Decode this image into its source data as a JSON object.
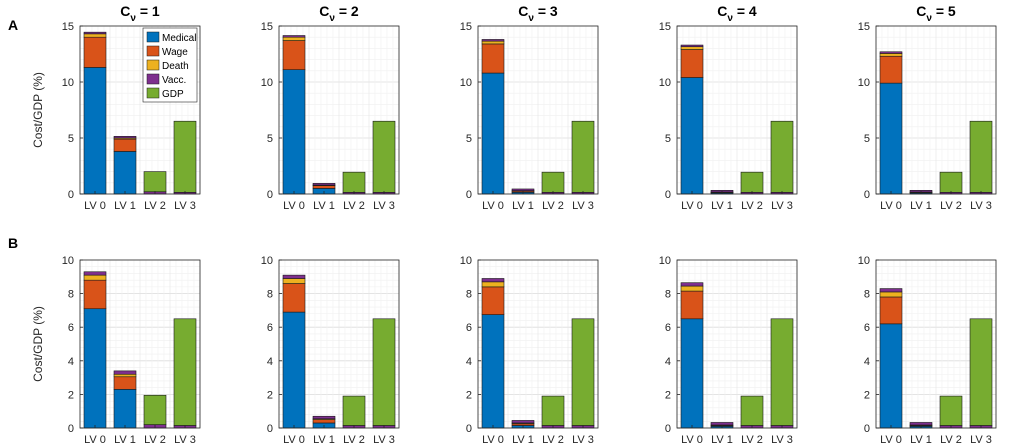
{
  "figure": {
    "panel_labels": [
      "A",
      "B"
    ],
    "colors": {
      "Medical": "#0072BD",
      "Wage": "#D95319",
      "Death": "#EDB120",
      "Vacc.": "#7E2F8E",
      "GDP": "#77AC30"
    }
  },
  "chart_data": [
    {
      "type": "bar",
      "stacked": true,
      "row": "A",
      "title_base": "C",
      "title_sub": "ν",
      "title_value": "= 1",
      "ylabel": "Cost/GDP (%)",
      "ylim": [
        0,
        15
      ],
      "yticks": [
        0,
        5,
        10,
        15
      ],
      "grid": true,
      "legend": "top-right",
      "categories": [
        "LV 0",
        "LV 1",
        "LV 2",
        "LV 3"
      ],
      "series": [
        {
          "name": "Medical",
          "values": [
            11.3,
            3.8,
            0.0,
            0.0
          ]
        },
        {
          "name": "Wage",
          "values": [
            2.7,
            1.1,
            0.0,
            0.0
          ]
        },
        {
          "name": "Death",
          "values": [
            0.3,
            0.1,
            0.0,
            0.0
          ]
        },
        {
          "name": "Vacc.",
          "values": [
            0.15,
            0.15,
            0.2,
            0.15
          ]
        },
        {
          "name": "GDP",
          "values": [
            0.0,
            0.0,
            1.8,
            6.35
          ]
        }
      ]
    },
    {
      "type": "bar",
      "stacked": true,
      "row": "A",
      "title_base": "C",
      "title_sub": "ν",
      "title_value": "= 2",
      "ylabel": "",
      "ylim": [
        0,
        15
      ],
      "yticks": [
        0,
        5,
        10,
        15
      ],
      "grid": true,
      "categories": [
        "LV 0",
        "LV 1",
        "LV 2",
        "LV 3"
      ],
      "series": [
        {
          "name": "Medical",
          "values": [
            11.1,
            0.5,
            0.0,
            0.0
          ]
        },
        {
          "name": "Wage",
          "values": [
            2.6,
            0.25,
            0.0,
            0.0
          ]
        },
        {
          "name": "Death",
          "values": [
            0.3,
            0.05,
            0.0,
            0.0
          ]
        },
        {
          "name": "Vacc.",
          "values": [
            0.15,
            0.15,
            0.15,
            0.15
          ]
        },
        {
          "name": "GDP",
          "values": [
            0.0,
            0.0,
            1.8,
            6.35
          ]
        }
      ]
    },
    {
      "type": "bar",
      "stacked": true,
      "row": "A",
      "title_base": "C",
      "title_sub": "ν",
      "title_value": "= 3",
      "ylabel": "",
      "ylim": [
        0,
        15
      ],
      "yticks": [
        0,
        5,
        10,
        15
      ],
      "grid": true,
      "categories": [
        "LV 0",
        "LV 1",
        "LV 2",
        "LV 3"
      ],
      "series": [
        {
          "name": "Medical",
          "values": [
            10.8,
            0.15,
            0.0,
            0.0
          ]
        },
        {
          "name": "Wage",
          "values": [
            2.6,
            0.1,
            0.0,
            0.0
          ]
        },
        {
          "name": "Death",
          "values": [
            0.25,
            0.05,
            0.0,
            0.0
          ]
        },
        {
          "name": "Vacc.",
          "values": [
            0.15,
            0.15,
            0.15,
            0.15
          ]
        },
        {
          "name": "GDP",
          "values": [
            0.0,
            0.0,
            1.8,
            6.35
          ]
        }
      ]
    },
    {
      "type": "bar",
      "stacked": true,
      "row": "A",
      "title_base": "C",
      "title_sub": "ν",
      "title_value": "= 4",
      "ylabel": "",
      "ylim": [
        0,
        15
      ],
      "yticks": [
        0,
        5,
        10,
        15
      ],
      "grid": true,
      "categories": [
        "LV 0",
        "LV 1",
        "LV 2",
        "LV 3"
      ],
      "series": [
        {
          "name": "Medical",
          "values": [
            10.4,
            0.1,
            0.0,
            0.0
          ]
        },
        {
          "name": "Wage",
          "values": [
            2.5,
            0.05,
            0.0,
            0.0
          ]
        },
        {
          "name": "Death",
          "values": [
            0.25,
            0.03,
            0.0,
            0.0
          ]
        },
        {
          "name": "Vacc.",
          "values": [
            0.15,
            0.15,
            0.15,
            0.15
          ]
        },
        {
          "name": "GDP",
          "values": [
            0.0,
            0.0,
            1.8,
            6.35
          ]
        }
      ]
    },
    {
      "type": "bar",
      "stacked": true,
      "row": "A",
      "title_base": "C",
      "title_sub": "ν",
      "title_value": "= 5",
      "ylabel": "",
      "ylim": [
        0,
        15
      ],
      "yticks": [
        0,
        5,
        10,
        15
      ],
      "grid": true,
      "categories": [
        "LV 0",
        "LV 1",
        "LV 2",
        "LV 3"
      ],
      "series": [
        {
          "name": "Medical",
          "values": [
            9.9,
            0.1,
            0.0,
            0.0
          ]
        },
        {
          "name": "Wage",
          "values": [
            2.4,
            0.05,
            0.0,
            0.0
          ]
        },
        {
          "name": "Death",
          "values": [
            0.25,
            0.03,
            0.0,
            0.0
          ]
        },
        {
          "name": "Vacc.",
          "values": [
            0.15,
            0.15,
            0.15,
            0.15
          ]
        },
        {
          "name": "GDP",
          "values": [
            0.0,
            0.0,
            1.8,
            6.35
          ]
        }
      ]
    },
    {
      "type": "bar",
      "stacked": true,
      "row": "B",
      "ylabel": "Cost/GDP (%)",
      "ylim": [
        0,
        10
      ],
      "yticks": [
        0,
        2,
        4,
        6,
        8,
        10
      ],
      "grid": true,
      "categories": [
        "LV 0",
        "LV 1",
        "LV 2",
        "LV 3"
      ],
      "series": [
        {
          "name": "Medical",
          "values": [
            7.1,
            2.3,
            0.0,
            0.0
          ]
        },
        {
          "name": "Wage",
          "values": [
            1.7,
            0.75,
            0.0,
            0.0
          ]
        },
        {
          "name": "Death",
          "values": [
            0.3,
            0.15,
            0.0,
            0.0
          ]
        },
        {
          "name": "Vacc.",
          "values": [
            0.2,
            0.2,
            0.2,
            0.15
          ]
        },
        {
          "name": "GDP",
          "values": [
            0.0,
            0.0,
            1.75,
            6.35
          ]
        }
      ]
    },
    {
      "type": "bar",
      "stacked": true,
      "row": "B",
      "ylabel": "",
      "ylim": [
        0,
        10
      ],
      "yticks": [
        0,
        2,
        4,
        6,
        8,
        10
      ],
      "grid": true,
      "categories": [
        "LV 0",
        "LV 1",
        "LV 2",
        "LV 3"
      ],
      "series": [
        {
          "name": "Medical",
          "values": [
            6.9,
            0.3,
            0.0,
            0.0
          ]
        },
        {
          "name": "Wage",
          "values": [
            1.7,
            0.2,
            0.0,
            0.0
          ]
        },
        {
          "name": "Death",
          "values": [
            0.3,
            0.05,
            0.0,
            0.0
          ]
        },
        {
          "name": "Vacc.",
          "values": [
            0.2,
            0.15,
            0.15,
            0.15
          ]
        },
        {
          "name": "GDP",
          "values": [
            0.0,
            0.0,
            1.75,
            6.35
          ]
        }
      ]
    },
    {
      "type": "bar",
      "stacked": true,
      "row": "B",
      "ylabel": "",
      "ylim": [
        0,
        10
      ],
      "yticks": [
        0,
        2,
        4,
        6,
        8,
        10
      ],
      "grid": true,
      "categories": [
        "LV 0",
        "LV 1",
        "LV 2",
        "LV 3"
      ],
      "series": [
        {
          "name": "Medical",
          "values": [
            6.75,
            0.15,
            0.0,
            0.0
          ]
        },
        {
          "name": "Wage",
          "values": [
            1.65,
            0.1,
            0.0,
            0.0
          ]
        },
        {
          "name": "Death",
          "values": [
            0.3,
            0.05,
            0.0,
            0.0
          ]
        },
        {
          "name": "Vacc.",
          "values": [
            0.2,
            0.15,
            0.15,
            0.15
          ]
        },
        {
          "name": "GDP",
          "values": [
            0.0,
            0.0,
            1.75,
            6.35
          ]
        }
      ]
    },
    {
      "type": "bar",
      "stacked": true,
      "row": "B",
      "ylabel": "",
      "ylim": [
        0,
        10
      ],
      "yticks": [
        0,
        2,
        4,
        6,
        8,
        10
      ],
      "grid": true,
      "categories": [
        "LV 0",
        "LV 1",
        "LV 2",
        "LV 3"
      ],
      "series": [
        {
          "name": "Medical",
          "values": [
            6.5,
            0.1,
            0.0,
            0.0
          ]
        },
        {
          "name": "Wage",
          "values": [
            1.65,
            0.05,
            0.0,
            0.0
          ]
        },
        {
          "name": "Death",
          "values": [
            0.3,
            0.03,
            0.0,
            0.0
          ]
        },
        {
          "name": "Vacc.",
          "values": [
            0.2,
            0.15,
            0.15,
            0.15
          ]
        },
        {
          "name": "GDP",
          "values": [
            0.0,
            0.0,
            1.75,
            6.35
          ]
        }
      ]
    },
    {
      "type": "bar",
      "stacked": true,
      "row": "B",
      "ylabel": "",
      "ylim": [
        0,
        10
      ],
      "yticks": [
        0,
        2,
        4,
        6,
        8,
        10
      ],
      "grid": true,
      "categories": [
        "LV 0",
        "LV 1",
        "LV 2",
        "LV 3"
      ],
      "series": [
        {
          "name": "Medical",
          "values": [
            6.2,
            0.1,
            0.0,
            0.0
          ]
        },
        {
          "name": "Wage",
          "values": [
            1.6,
            0.05,
            0.0,
            0.0
          ]
        },
        {
          "name": "Death",
          "values": [
            0.3,
            0.03,
            0.0,
            0.0
          ]
        },
        {
          "name": "Vacc.",
          "values": [
            0.2,
            0.15,
            0.15,
            0.15
          ]
        },
        {
          "name": "GDP",
          "values": [
            0.0,
            0.0,
            1.75,
            6.35
          ]
        }
      ]
    }
  ]
}
